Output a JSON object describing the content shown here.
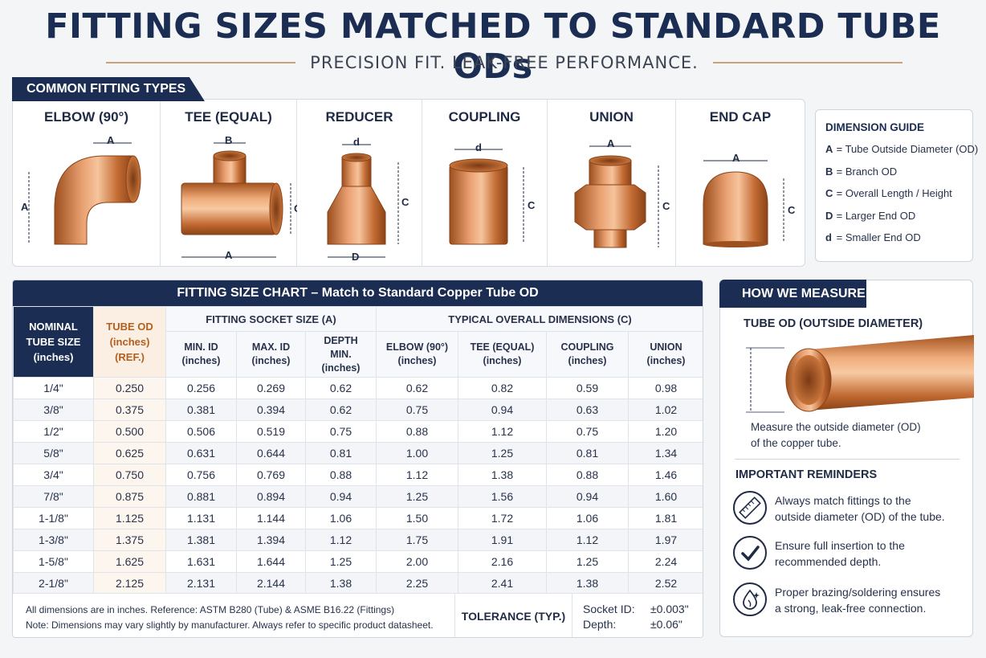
{
  "header": {
    "title": "FITTING SIZES MATCHED TO STANDARD TUBE ODs",
    "subtitle": "PRECISION FIT. LEAK-FREE PERFORMANCE."
  },
  "types_section": {
    "tag": "COMMON FITTING TYPES",
    "items": [
      {
        "name": "ELBOW (90°)",
        "dims": [
          "A",
          "A"
        ]
      },
      {
        "name": "TEE (EQUAL)",
        "dims": [
          "B",
          "C",
          "A"
        ]
      },
      {
        "name": "REDUCER",
        "dims": [
          "d",
          "C",
          "D"
        ]
      },
      {
        "name": "COUPLING",
        "dims": [
          "d",
          "C"
        ]
      },
      {
        "name": "UNION",
        "dims": [
          "A",
          "C"
        ]
      },
      {
        "name": "END CAP",
        "dims": [
          "A",
          "C"
        ]
      }
    ]
  },
  "dimension_guide": {
    "title": "DIMENSION GUIDE",
    "rows": [
      {
        "key": "A",
        "text": " = Tube Outside Diameter (OD)"
      },
      {
        "key": "B",
        "text": " = Branch OD"
      },
      {
        "key": "C",
        "text": " = Overall Length / Height"
      },
      {
        "key": "D",
        "text": " = Larger End OD"
      },
      {
        "key": "d",
        "text": " = Smaller End OD"
      }
    ]
  },
  "chart": {
    "title": "FITTING SIZE CHART – Match to Standard Copper Tube OD",
    "headers": {
      "nominal": [
        "NOMINAL",
        "TUBE SIZE",
        "(inches)"
      ],
      "tube_od": [
        "TUBE OD",
        "(inches)",
        "(REF.)"
      ],
      "socket_group": "FITTING SOCKET SIZE (A)",
      "overall_group": "TYPICAL OVERALL DIMENSIONS (C)",
      "sub": [
        [
          "MIN. ID",
          "(inches)"
        ],
        [
          "MAX. ID",
          "(inches)"
        ],
        [
          "DEPTH",
          "MIN.",
          "(inches)"
        ],
        [
          "ELBOW (90°)",
          "(inches)"
        ],
        [
          "TEE (EQUAL)",
          "(inches)"
        ],
        [
          "COUPLING",
          "(inches)"
        ],
        [
          "UNION",
          "(inches)"
        ]
      ]
    },
    "rows": [
      [
        "1/4\"",
        "0.250",
        "0.256",
        "0.269",
        "0.62",
        "0.62",
        "0.82",
        "0.59",
        "0.98"
      ],
      [
        "3/8\"",
        "0.375",
        "0.381",
        "0.394",
        "0.62",
        "0.75",
        "0.94",
        "0.63",
        "1.02"
      ],
      [
        "1/2\"",
        "0.500",
        "0.506",
        "0.519",
        "0.75",
        "0.88",
        "1.12",
        "0.75",
        "1.20"
      ],
      [
        "5/8\"",
        "0.625",
        "0.631",
        "0.644",
        "0.81",
        "1.00",
        "1.25",
        "0.81",
        "1.34"
      ],
      [
        "3/4\"",
        "0.750",
        "0.756",
        "0.769",
        "0.88",
        "1.12",
        "1.38",
        "0.88",
        "1.46"
      ],
      [
        "7/8\"",
        "0.875",
        "0.881",
        "0.894",
        "0.94",
        "1.25",
        "1.56",
        "0.94",
        "1.60"
      ],
      [
        "1-1/8\"",
        "1.125",
        "1.131",
        "1.144",
        "1.06",
        "1.50",
        "1.72",
        "1.06",
        "1.81"
      ],
      [
        "1-3/8\"",
        "1.375",
        "1.381",
        "1.394",
        "1.12",
        "1.75",
        "1.91",
        "1.12",
        "1.97"
      ],
      [
        "1-5/8\"",
        "1.625",
        "1.631",
        "1.644",
        "1.25",
        "2.00",
        "2.16",
        "1.25",
        "2.24"
      ],
      [
        "2-1/8\"",
        "2.125",
        "2.131",
        "2.144",
        "1.38",
        "2.25",
        "2.41",
        "1.38",
        "2.52"
      ]
    ],
    "footer": {
      "note1": "All dimensions are in inches. Reference: ASTM B280 (Tube) & ASME B16.22 (Fittings)",
      "note2": "Note: Dimensions may vary slightly by manufacturer. Always refer to specific product datasheet.",
      "tolerance_label": "TOLERANCE (TYP.)",
      "socket_label": "Socket ID:",
      "socket_value": "±0.003\"",
      "depth_label": "Depth:",
      "depth_value": "±0.06\""
    }
  },
  "measure": {
    "tag": "HOW WE MEASURE",
    "subtitle": "TUBE OD (OUTSIDE DIAMETER)",
    "caption1": "Measure the outside diameter (OD)",
    "caption2": "of the copper tube.",
    "reminders_title": "IMPORTANT REMINDERS",
    "reminders": [
      {
        "icon": "ruler-icon",
        "line1": "Always match fittings to the",
        "line2": "outside diameter (OD) of the tube."
      },
      {
        "icon": "checkmark-icon",
        "line1": "Ensure full insertion to the",
        "line2": "recommended depth."
      },
      {
        "icon": "flame-drop-icon",
        "line1": "Proper brazing/soldering ensures",
        "line2": "a strong, leak-free connection."
      }
    ]
  },
  "colors": {
    "navy": "#1b2d52",
    "copper": "#c8743a",
    "accent_line": "#c9a27a"
  }
}
